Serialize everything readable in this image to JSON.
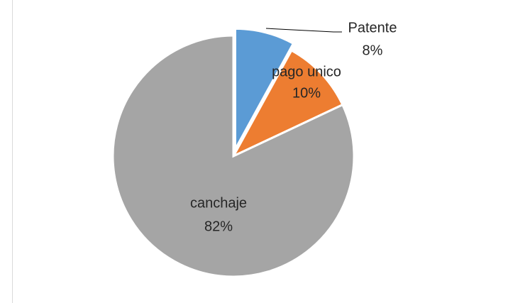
{
  "chart_data": {
    "type": "pie",
    "categories": [
      "Patente",
      "pago unico",
      "canchaje"
    ],
    "values": [
      8,
      10,
      82
    ],
    "value_labels": [
      "8%",
      "10%",
      "82%"
    ],
    "colors": [
      "#5b9bd5",
      "#ed7d31",
      "#a5a5a5"
    ]
  }
}
